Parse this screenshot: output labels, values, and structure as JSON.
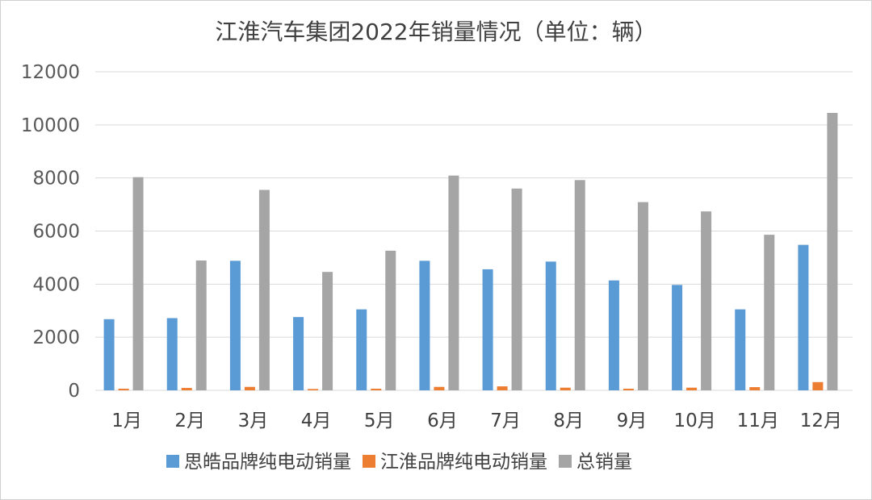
{
  "chart_data": {
    "type": "bar",
    "title": "江淮汽车集团2022年销量情况（单位：辆）",
    "categories": [
      "1月",
      "2月",
      "3月",
      "4月",
      "5月",
      "6月",
      "7月",
      "8月",
      "9月",
      "10月",
      "11月",
      "12月"
    ],
    "series": [
      {
        "name": "思皓品牌纯电动销量",
        "color": "#5b9bd5",
        "values": [
          2680,
          2720,
          4880,
          2760,
          3050,
          4880,
          4560,
          4850,
          4140,
          3970,
          3050,
          5480
        ]
      },
      {
        "name": "江淮品牌纯电动销量",
        "color": "#ed7d31",
        "values": [
          60,
          90,
          130,
          50,
          60,
          130,
          150,
          100,
          60,
          100,
          120,
          310
        ]
      },
      {
        "name": "总销量",
        "color": "#a5a5a5",
        "values": [
          8030,
          4890,
          7550,
          4460,
          5260,
          8090,
          7600,
          7920,
          7090,
          6740,
          5860,
          10450
        ]
      }
    ],
    "ylim": [
      0,
      12000
    ],
    "yticks": [
      0,
      2000,
      4000,
      6000,
      8000,
      10000,
      12000
    ],
    "grid": true,
    "legend": "bottom"
  }
}
